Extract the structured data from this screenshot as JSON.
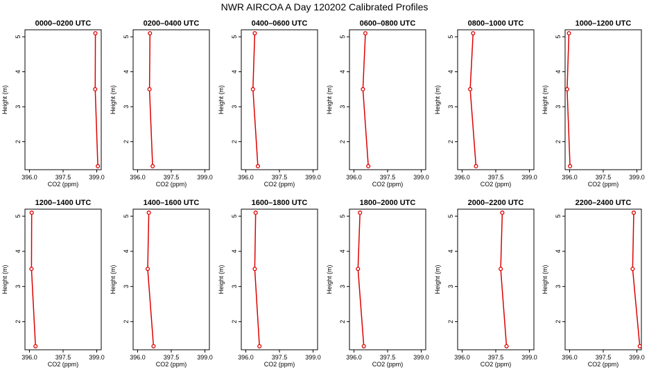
{
  "figure": {
    "title": "NWR AIRCOA A  Day 120202  Calibrated Profiles",
    "line_color": "#dd0000",
    "axis_color": "#000000"
  },
  "chart_data": [
    {
      "type": "line",
      "title": "0000–0200 UTC",
      "xlabel": "CO2 (ppm)",
      "ylabel": "Height (m)",
      "xlim": [
        395.8,
        399.2
      ],
      "ylim": [
        1.2,
        5.2
      ],
      "xticks": [
        "396.0",
        "397.5",
        "399.0"
      ],
      "yticks": [
        "2",
        "3",
        "4",
        "5"
      ],
      "series": [
        {
          "name": "profile",
          "points": [
            {
              "co2": 398.94,
              "height": 5.1
            },
            {
              "co2": 398.93,
              "height": 3.5
            },
            {
              "co2": 399.05,
              "height": 1.3
            }
          ]
        }
      ]
    },
    {
      "type": "line",
      "title": "0200–0400 UTC",
      "xlabel": "CO2 (ppm)",
      "ylabel": "Height (m)",
      "xlim": [
        395.8,
        399.2
      ],
      "ylim": [
        1.2,
        5.2
      ],
      "xticks": [
        "396.0",
        "397.5",
        "399.0"
      ],
      "yticks": [
        "2",
        "3",
        "4",
        "5"
      ],
      "series": [
        {
          "name": "profile",
          "points": [
            {
              "co2": 396.55,
              "height": 5.1
            },
            {
              "co2": 396.53,
              "height": 3.5
            },
            {
              "co2": 396.67,
              "height": 1.3
            }
          ]
        }
      ]
    },
    {
      "type": "line",
      "title": "0400–0600 UTC",
      "xlabel": "CO2 (ppm)",
      "ylabel": "Height (m)",
      "xlim": [
        395.8,
        399.2
      ],
      "ylim": [
        1.2,
        5.2
      ],
      "xticks": [
        "396.0",
        "397.5",
        "399.0"
      ],
      "yticks": [
        "2",
        "3",
        "4",
        "5"
      ],
      "series": [
        {
          "name": "profile",
          "points": [
            {
              "co2": 396.4,
              "height": 5.1
            },
            {
              "co2": 396.32,
              "height": 3.5
            },
            {
              "co2": 396.54,
              "height": 1.3
            }
          ]
        }
      ]
    },
    {
      "type": "line",
      "title": "0600–0800 UTC",
      "xlabel": "CO2 (ppm)",
      "ylabel": "Height (m)",
      "xlim": [
        395.8,
        399.2
      ],
      "ylim": [
        1.2,
        5.2
      ],
      "xticks": [
        "396.0",
        "397.5",
        "399.0"
      ],
      "yticks": [
        "2",
        "3",
        "4",
        "5"
      ],
      "series": [
        {
          "name": "profile",
          "points": [
            {
              "co2": 396.51,
              "height": 5.1
            },
            {
              "co2": 396.4,
              "height": 3.5
            },
            {
              "co2": 396.64,
              "height": 1.3
            }
          ]
        }
      ]
    },
    {
      "type": "line",
      "title": "0800–1000 UTC",
      "xlabel": "CO2 (ppm)",
      "ylabel": "Height (m)",
      "xlim": [
        395.8,
        399.2
      ],
      "ylim": [
        1.2,
        5.2
      ],
      "xticks": [
        "396.0",
        "397.5",
        "399.0"
      ],
      "yticks": [
        "2",
        "3",
        "4",
        "5"
      ],
      "series": [
        {
          "name": "profile",
          "points": [
            {
              "co2": 396.49,
              "height": 5.1
            },
            {
              "co2": 396.36,
              "height": 3.5
            },
            {
              "co2": 396.62,
              "height": 1.3
            }
          ]
        }
      ]
    },
    {
      "type": "line",
      "title": "1000–1200 UTC",
      "xlabel": "CO2 (ppm)",
      "ylabel": "Height (m)",
      "xlim": [
        395.8,
        399.2
      ],
      "ylim": [
        1.2,
        5.2
      ],
      "xticks": [
        "396.0",
        "397.5",
        "399.0"
      ],
      "yticks": [
        "2",
        "3",
        "4",
        "5"
      ],
      "series": [
        {
          "name": "profile",
          "points": [
            {
              "co2": 395.97,
              "height": 5.1
            },
            {
              "co2": 395.89,
              "height": 3.5
            },
            {
              "co2": 396.02,
              "height": 1.3
            }
          ]
        }
      ]
    },
    {
      "type": "line",
      "title": "1200–1400 UTC",
      "xlabel": "CO2 (ppm)",
      "ylabel": "Height (m)",
      "xlim": [
        395.8,
        399.2
      ],
      "ylim": [
        1.2,
        5.2
      ],
      "xticks": [
        "396.0",
        "397.5",
        "399.0"
      ],
      "yticks": [
        "2",
        "3",
        "4",
        "5"
      ],
      "series": [
        {
          "name": "profile",
          "points": [
            {
              "co2": 396.1,
              "height": 5.1
            },
            {
              "co2": 396.09,
              "height": 3.5
            },
            {
              "co2": 396.27,
              "height": 1.3
            }
          ]
        }
      ]
    },
    {
      "type": "line",
      "title": "1400–1600 UTC",
      "xlabel": "CO2 (ppm)",
      "ylabel": "Height (m)",
      "xlim": [
        395.8,
        399.2
      ],
      "ylim": [
        1.2,
        5.2
      ],
      "xticks": [
        "396.0",
        "397.5",
        "399.0"
      ],
      "yticks": [
        "2",
        "3",
        "4",
        "5"
      ],
      "series": [
        {
          "name": "profile",
          "points": [
            {
              "co2": 396.5,
              "height": 5.1
            },
            {
              "co2": 396.45,
              "height": 3.5
            },
            {
              "co2": 396.71,
              "height": 1.3
            }
          ]
        }
      ]
    },
    {
      "type": "line",
      "title": "1600–1800 UTC",
      "xlabel": "CO2 (ppm)",
      "ylabel": "Height (m)",
      "xlim": [
        395.8,
        399.2
      ],
      "ylim": [
        1.2,
        5.2
      ],
      "xticks": [
        "396.0",
        "397.5",
        "399.0"
      ],
      "yticks": [
        "2",
        "3",
        "4",
        "5"
      ],
      "series": [
        {
          "name": "profile",
          "points": [
            {
              "co2": 396.44,
              "height": 5.1
            },
            {
              "co2": 396.4,
              "height": 3.5
            },
            {
              "co2": 396.61,
              "height": 1.3
            }
          ]
        }
      ]
    },
    {
      "type": "line",
      "title": "1800–2000 UTC",
      "xlabel": "CO2 (ppm)",
      "ylabel": "Height (m)",
      "xlim": [
        395.8,
        399.2
      ],
      "ylim": [
        1.2,
        5.2
      ],
      "xticks": [
        "396.0",
        "397.5",
        "399.0"
      ],
      "yticks": [
        "2",
        "3",
        "4",
        "5"
      ],
      "series": [
        {
          "name": "profile",
          "points": [
            {
              "co2": 396.27,
              "height": 5.1
            },
            {
              "co2": 396.18,
              "height": 3.5
            },
            {
              "co2": 396.44,
              "height": 1.3
            }
          ]
        }
      ]
    },
    {
      "type": "line",
      "title": "2000–2200 UTC",
      "xlabel": "CO2 (ppm)",
      "ylabel": "Height (m)",
      "xlim": [
        395.8,
        399.2
      ],
      "ylim": [
        1.2,
        5.2
      ],
      "xticks": [
        "396.0",
        "397.5",
        "399.0"
      ],
      "yticks": [
        "2",
        "3",
        "4",
        "5"
      ],
      "series": [
        {
          "name": "profile",
          "points": [
            {
              "co2": 397.79,
              "height": 5.1
            },
            {
              "co2": 397.72,
              "height": 3.5
            },
            {
              "co2": 397.98,
              "height": 1.3
            }
          ]
        }
      ]
    },
    {
      "type": "line",
      "title": "2200–2400 UTC",
      "xlabel": "CO2 (ppm)",
      "ylabel": "Height (m)",
      "xlim": [
        395.8,
        399.2
      ],
      "ylim": [
        1.2,
        5.2
      ],
      "xticks": [
        "396.0",
        "397.5",
        "399.0"
      ],
      "yticks": [
        "2",
        "3",
        "4",
        "5"
      ],
      "series": [
        {
          "name": "profile",
          "points": [
            {
              "co2": 398.86,
              "height": 5.1
            },
            {
              "co2": 398.81,
              "height": 3.5
            },
            {
              "co2": 399.13,
              "height": 1.3
            }
          ]
        }
      ]
    }
  ]
}
